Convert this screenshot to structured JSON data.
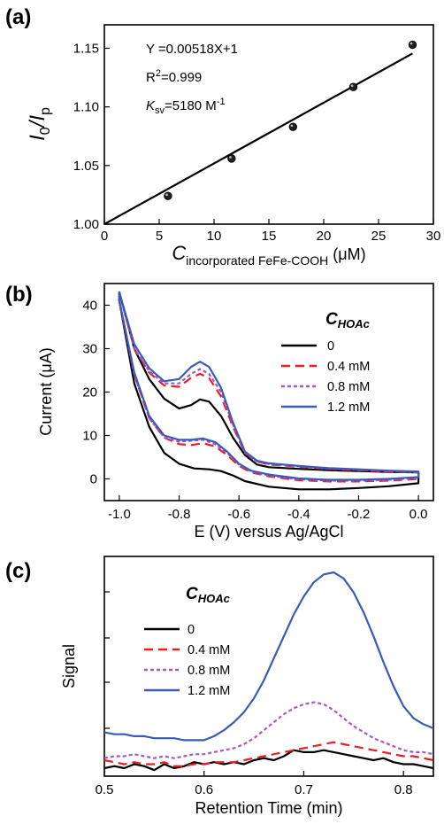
{
  "chart_data": [
    {
      "panel": "(a)",
      "type": "scatter",
      "xlabel_main": "C",
      "xlabel_sub": "incorporated FeFe-COOH",
      "xlabel_unit": "(μM)",
      "ylabel": "I0/Ip",
      "ylabel_main": "I",
      "ylabel_sub1": "0",
      "ylabel_slash": "/I",
      "ylabel_sub2": "p",
      "xlim": [
        0,
        30
      ],
      "ylim": [
        1.0,
        1.17
      ],
      "xticks": [
        "0",
        "5",
        "10",
        "15",
        "20",
        "25",
        "30"
      ],
      "yticks": [
        "1.00",
        "1.05",
        "1.10",
        "1.15"
      ],
      "points": {
        "x": [
          5.8,
          11.6,
          17.2,
          22.7,
          28.1
        ],
        "y": [
          1.024,
          1.056,
          1.083,
          1.117,
          1.153
        ]
      },
      "fit": {
        "slope": 0.00518,
        "intercept": 1.0,
        "x": [
          0,
          28.1
        ]
      },
      "annotations": {
        "equation": "Y =0.00518X+1",
        "r2_main": "R",
        "r2_sup": "2",
        "r2_rest": "=0.999",
        "ksv_main": "K",
        "ksv_sub": "sv",
        "ksv_rest": "=5180 M",
        "ksv_sup": "-1"
      }
    },
    {
      "panel": "(b)",
      "type": "line",
      "xlabel": "E (V) versus Ag/AgCl",
      "ylabel": "Current (μA)",
      "xlim": [
        -1.05,
        0.05
      ],
      "ylim": [
        -5,
        45
      ],
      "xticks": [
        "-1.0",
        "-0.8",
        "-0.6",
        "-0.4",
        "-0.2",
        "0.0"
      ],
      "yticks": [
        "0",
        "10",
        "20",
        "30",
        "40"
      ],
      "legend_title_main": "C",
      "legend_title_sub": "HOAc",
      "legend_position": "top-right",
      "series": [
        {
          "name": "0",
          "color": "#000000",
          "dash": "solid",
          "upper": [
            [
              -1.0,
              43
            ],
            [
              -0.95,
              30
            ],
            [
              -0.9,
              23
            ],
            [
              -0.85,
              18.5
            ],
            [
              -0.8,
              16.2
            ],
            [
              -0.76,
              17
            ],
            [
              -0.73,
              18.3
            ],
            [
              -0.7,
              17.8
            ],
            [
              -0.66,
              14.5
            ],
            [
              -0.62,
              9.5
            ],
            [
              -0.58,
              5.5
            ],
            [
              -0.54,
              3.3
            ],
            [
              -0.5,
              2.7
            ],
            [
              -0.4,
              2.3
            ],
            [
              -0.3,
              2.0
            ],
            [
              -0.2,
              1.8
            ],
            [
              -0.1,
              1.6
            ],
            [
              0.0,
              1.5
            ]
          ],
          "lower": [
            [
              -1.0,
              41
            ],
            [
              -0.95,
              22
            ],
            [
              -0.9,
              12
            ],
            [
              -0.85,
              6
            ],
            [
              -0.8,
              3.5
            ],
            [
              -0.75,
              2.4
            ],
            [
              -0.7,
              2.2
            ],
            [
              -0.66,
              1.8
            ],
            [
              -0.62,
              0.8
            ],
            [
              -0.58,
              -0.5
            ],
            [
              -0.5,
              -1.8
            ],
            [
              -0.4,
              -2.4
            ],
            [
              -0.3,
              -2.4
            ],
            [
              -0.2,
              -2.1
            ],
            [
              -0.1,
              -1.7
            ],
            [
              0.0,
              -1.0
            ]
          ]
        },
        {
          "name": "0.4 mM",
          "color": "#ee1d23",
          "dash": "10,6",
          "upper": [
            [
              -1.0,
              43
            ],
            [
              -0.95,
              30
            ],
            [
              -0.9,
              24.5
            ],
            [
              -0.85,
              21.5
            ],
            [
              -0.8,
              21.2
            ],
            [
              -0.76,
              23.3
            ],
            [
              -0.73,
              24.2
            ],
            [
              -0.7,
              23.2
            ],
            [
              -0.66,
              19
            ],
            [
              -0.62,
              12
            ],
            [
              -0.58,
              6
            ],
            [
              -0.54,
              4
            ],
            [
              -0.5,
              3.3
            ],
            [
              -0.4,
              2.8
            ],
            [
              -0.3,
              2.3
            ],
            [
              -0.2,
              2.0
            ],
            [
              -0.1,
              1.7
            ],
            [
              0.0,
              1.5
            ]
          ],
          "lower": [
            [
              -1.0,
              41
            ],
            [
              -0.95,
              24
            ],
            [
              -0.9,
              14
            ],
            [
              -0.85,
              9.5
            ],
            [
              -0.8,
              8
            ],
            [
              -0.76,
              7.8
            ],
            [
              -0.72,
              8.2
            ],
            [
              -0.68,
              7.5
            ],
            [
              -0.64,
              5.5
            ],
            [
              -0.6,
              3
            ],
            [
              -0.56,
              1.5
            ],
            [
              -0.5,
              0.6
            ],
            [
              -0.4,
              -0.3
            ],
            [
              -0.3,
              -0.6
            ],
            [
              -0.2,
              -0.6
            ],
            [
              -0.1,
              -0.4
            ],
            [
              0.0,
              0.0
            ]
          ]
        },
        {
          "name": "0.8 mM",
          "color": "#a855c8",
          "dash": "4,3",
          "upper": [
            [
              -1.0,
              43
            ],
            [
              -0.95,
              30
            ],
            [
              -0.9,
              24.8
            ],
            [
              -0.85,
              22
            ],
            [
              -0.8,
              22
            ],
            [
              -0.76,
              24.2
            ],
            [
              -0.73,
              25.3
            ],
            [
              -0.7,
              24.2
            ],
            [
              -0.66,
              20
            ],
            [
              -0.62,
              12.5
            ],
            [
              -0.58,
              6
            ],
            [
              -0.54,
              4
            ],
            [
              -0.5,
              3.4
            ],
            [
              -0.4,
              2.9
            ],
            [
              -0.3,
              2.4
            ],
            [
              -0.2,
              2.1
            ],
            [
              -0.1,
              1.8
            ],
            [
              0.0,
              1.6
            ]
          ],
          "lower": [
            [
              -1.0,
              41
            ],
            [
              -0.95,
              24
            ],
            [
              -0.9,
              14
            ],
            [
              -0.85,
              9.5
            ],
            [
              -0.8,
              8.6
            ],
            [
              -0.76,
              8.8
            ],
            [
              -0.72,
              9
            ],
            [
              -0.68,
              8
            ],
            [
              -0.64,
              6
            ],
            [
              -0.6,
              3.3
            ],
            [
              -0.56,
              1.7
            ],
            [
              -0.5,
              0.8
            ],
            [
              -0.4,
              -0.1
            ],
            [
              -0.3,
              -0.4
            ],
            [
              -0.2,
              -0.4
            ],
            [
              -0.1,
              -0.2
            ],
            [
              0.0,
              0.2
            ]
          ]
        },
        {
          "name": "1.2 mM",
          "color": "#3a5bb5",
          "dash": "solid",
          "upper": [
            [
              -1.0,
              43
            ],
            [
              -0.95,
              31
            ],
            [
              -0.9,
              25.5
            ],
            [
              -0.85,
              22.5
            ],
            [
              -0.8,
              23
            ],
            [
              -0.76,
              25.8
            ],
            [
              -0.73,
              27
            ],
            [
              -0.7,
              25.8
            ],
            [
              -0.66,
              21
            ],
            [
              -0.62,
              13
            ],
            [
              -0.58,
              6.3
            ],
            [
              -0.54,
              4.2
            ],
            [
              -0.5,
              3.6
            ],
            [
              -0.4,
              3.0
            ],
            [
              -0.3,
              2.5
            ],
            [
              -0.2,
              2.2
            ],
            [
              -0.1,
              1.9
            ],
            [
              0.0,
              1.7
            ]
          ],
          "lower": [
            [
              -1.0,
              41
            ],
            [
              -0.95,
              24.5
            ],
            [
              -0.9,
              14.5
            ],
            [
              -0.85,
              10
            ],
            [
              -0.8,
              9
            ],
            [
              -0.76,
              9
            ],
            [
              -0.72,
              9.3
            ],
            [
              -0.68,
              8.5
            ],
            [
              -0.64,
              6.3
            ],
            [
              -0.6,
              3.5
            ],
            [
              -0.56,
              1.9
            ],
            [
              -0.5,
              1.0
            ],
            [
              -0.4,
              0.1
            ],
            [
              -0.3,
              -0.2
            ],
            [
              -0.2,
              -0.2
            ],
            [
              -0.1,
              0.0
            ],
            [
              0.0,
              0.4
            ]
          ]
        }
      ]
    },
    {
      "panel": "(c)",
      "type": "line",
      "xlabel": "Retention Time (min)",
      "ylabel": "Signal",
      "xlim": [
        0.5,
        0.83
      ],
      "ylim": [
        0,
        1
      ],
      "xticks": [
        "0.5",
        "0.6",
        "0.7",
        "0.8"
      ],
      "legend_title_main": "C",
      "legend_title_sub": "HOAc",
      "legend_position": "top-left",
      "series": [
        {
          "name": "0",
          "color": "#000000",
          "dash": "solid",
          "x": [
            0.5,
            0.51,
            0.52,
            0.53,
            0.54,
            0.55,
            0.56,
            0.57,
            0.58,
            0.59,
            0.6,
            0.61,
            0.62,
            0.63,
            0.64,
            0.65,
            0.66,
            0.67,
            0.68,
            0.69,
            0.7,
            0.71,
            0.72,
            0.73,
            0.74,
            0.75,
            0.76,
            0.77,
            0.78,
            0.79,
            0.8,
            0.81,
            0.82,
            0.83
          ],
          "y": [
            0.02,
            0.03,
            0.02,
            0.04,
            0.03,
            0.01,
            0.04,
            0.02,
            0.03,
            0.05,
            0.04,
            0.05,
            0.04,
            0.05,
            0.04,
            0.06,
            0.07,
            0.06,
            0.08,
            0.11,
            0.1,
            0.1,
            0.11,
            0.1,
            0.09,
            0.08,
            0.07,
            0.06,
            0.07,
            0.05,
            0.04,
            0.04,
            0.03,
            0.02
          ]
        },
        {
          "name": "0.4 mM",
          "color": "#ee1d23",
          "dash": "10,6",
          "x": [
            0.5,
            0.51,
            0.52,
            0.53,
            0.54,
            0.55,
            0.56,
            0.57,
            0.58,
            0.59,
            0.6,
            0.61,
            0.62,
            0.63,
            0.64,
            0.65,
            0.66,
            0.67,
            0.68,
            0.69,
            0.7,
            0.71,
            0.72,
            0.73,
            0.74,
            0.75,
            0.76,
            0.77,
            0.78,
            0.79,
            0.8,
            0.81,
            0.82,
            0.83
          ],
          "y": [
            0.06,
            0.05,
            0.04,
            0.05,
            0.04,
            0.04,
            0.05,
            0.03,
            0.03,
            0.04,
            0.04,
            0.05,
            0.05,
            0.05,
            0.06,
            0.07,
            0.08,
            0.09,
            0.1,
            0.11,
            0.12,
            0.13,
            0.14,
            0.15,
            0.14,
            0.13,
            0.12,
            0.11,
            0.1,
            0.09,
            0.08,
            0.08,
            0.07,
            0.06
          ]
        },
        {
          "name": "0.8 mM",
          "color": "#a855c8",
          "dash": "4,3",
          "x": [
            0.5,
            0.51,
            0.52,
            0.53,
            0.54,
            0.55,
            0.56,
            0.57,
            0.58,
            0.59,
            0.6,
            0.61,
            0.62,
            0.63,
            0.64,
            0.65,
            0.66,
            0.67,
            0.68,
            0.69,
            0.7,
            0.71,
            0.72,
            0.73,
            0.74,
            0.75,
            0.76,
            0.77,
            0.78,
            0.79,
            0.8,
            0.81,
            0.82,
            0.83
          ],
          "y": [
            0.07,
            0.08,
            0.08,
            0.09,
            0.08,
            0.07,
            0.08,
            0.07,
            0.08,
            0.09,
            0.09,
            0.1,
            0.11,
            0.12,
            0.14,
            0.17,
            0.21,
            0.25,
            0.29,
            0.32,
            0.34,
            0.35,
            0.34,
            0.31,
            0.27,
            0.23,
            0.2,
            0.17,
            0.15,
            0.13,
            0.11,
            0.1,
            0.1,
            0.09
          ]
        },
        {
          "name": "1.2 mM",
          "color": "#3a5bb5",
          "dash": "solid",
          "x": [
            0.5,
            0.51,
            0.52,
            0.53,
            0.54,
            0.55,
            0.56,
            0.57,
            0.58,
            0.59,
            0.6,
            0.61,
            0.62,
            0.63,
            0.64,
            0.65,
            0.66,
            0.67,
            0.68,
            0.69,
            0.7,
            0.71,
            0.72,
            0.73,
            0.74,
            0.75,
            0.76,
            0.77,
            0.78,
            0.79,
            0.8,
            0.81,
            0.82,
            0.83
          ],
          "y": [
            0.2,
            0.19,
            0.19,
            0.18,
            0.18,
            0.17,
            0.17,
            0.17,
            0.16,
            0.16,
            0.16,
            0.18,
            0.21,
            0.25,
            0.3,
            0.37,
            0.46,
            0.57,
            0.68,
            0.79,
            0.88,
            0.95,
            0.99,
            1.0,
            0.97,
            0.9,
            0.8,
            0.68,
            0.55,
            0.43,
            0.33,
            0.27,
            0.24,
            0.22
          ]
        }
      ]
    }
  ]
}
